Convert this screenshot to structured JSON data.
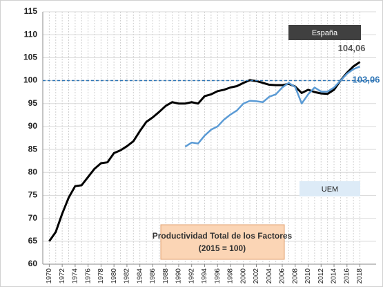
{
  "chart_data": {
    "type": "line",
    "title": "Productividad Total de los Factores",
    "subtitle": "(2015 = 100)",
    "x": [
      1970,
      1971,
      1972,
      1973,
      1974,
      1975,
      1976,
      1977,
      1978,
      1979,
      1980,
      1981,
      1982,
      1983,
      1984,
      1985,
      1986,
      1987,
      1988,
      1989,
      1990,
      1991,
      1992,
      1993,
      1994,
      1995,
      1996,
      1997,
      1998,
      1999,
      2000,
      2001,
      2002,
      2003,
      2004,
      2005,
      2006,
      2007,
      2008,
      2009,
      2010,
      2011,
      2012,
      2013,
      2014,
      2015,
      2016,
      2017,
      2018
    ],
    "xlim": [
      1969,
      2020.5
    ],
    "xticks": [
      1970,
      1972,
      1974,
      1976,
      1978,
      1980,
      1982,
      1984,
      1986,
      1988,
      1990,
      1992,
      1994,
      1996,
      1998,
      2000,
      2002,
      2004,
      2006,
      2008,
      2010,
      2012,
      2014,
      2016,
      2018
    ],
    "ylim": [
      60,
      115
    ],
    "yticks": [
      60,
      65,
      70,
      75,
      80,
      85,
      90,
      95,
      100,
      105,
      110,
      115
    ],
    "reference_line": 100,
    "grid": true,
    "series": [
      {
        "name": "España",
        "color": "#000000",
        "values": [
          65,
          67,
          71,
          74.5,
          77,
          77.2,
          79,
          80.8,
          82,
          82.2,
          84.2,
          84.8,
          85.7,
          86.8,
          89,
          91,
          92,
          93.2,
          94.5,
          95.3,
          95,
          95,
          95.3,
          95,
          96.6,
          97,
          97.7,
          98,
          98.5,
          98.8,
          99.5,
          100.1,
          99.9,
          99.5,
          99.1,
          99,
          99,
          99.3,
          98.7,
          97.3,
          98,
          97.5,
          97.2,
          97.1,
          98,
          100,
          101.7,
          103.1,
          104.06
        ],
        "value_labels": [
          null,
          null,
          null,
          null,
          null,
          null,
          null,
          null,
          null,
          null,
          null,
          null,
          null,
          null,
          null,
          null,
          null,
          null,
          null,
          null,
          null,
          null,
          null,
          null,
          null,
          null,
          null,
          null,
          null,
          null,
          null,
          null,
          null,
          null,
          null,
          null,
          null,
          null,
          null,
          null,
          null,
          null,
          null,
          null,
          null,
          null,
          null,
          null,
          "104,06"
        ]
      },
      {
        "name": "UEM",
        "color": "#5b9bd5",
        "values": [
          null,
          null,
          null,
          null,
          null,
          null,
          null,
          null,
          null,
          null,
          null,
          null,
          null,
          null,
          null,
          null,
          null,
          null,
          null,
          null,
          null,
          85.6,
          86.5,
          86.3,
          88,
          89.3,
          90,
          91.5,
          92.6,
          93.5,
          95,
          95.6,
          95.5,
          95.3,
          96.5,
          97,
          98.5,
          99.5,
          98.6,
          95,
          97,
          98.5,
          97.6,
          97.6,
          98.5,
          100,
          101.5,
          102.5,
          103.06
        ],
        "value_labels": [
          null,
          null,
          null,
          null,
          null,
          null,
          null,
          null,
          null,
          null,
          null,
          null,
          null,
          null,
          null,
          null,
          null,
          null,
          null,
          null,
          null,
          null,
          null,
          null,
          null,
          null,
          null,
          null,
          null,
          null,
          null,
          null,
          null,
          null,
          null,
          null,
          null,
          null,
          null,
          null,
          null,
          null,
          null,
          null,
          null,
          null,
          null,
          null,
          "103,06"
        ]
      }
    ]
  }
}
